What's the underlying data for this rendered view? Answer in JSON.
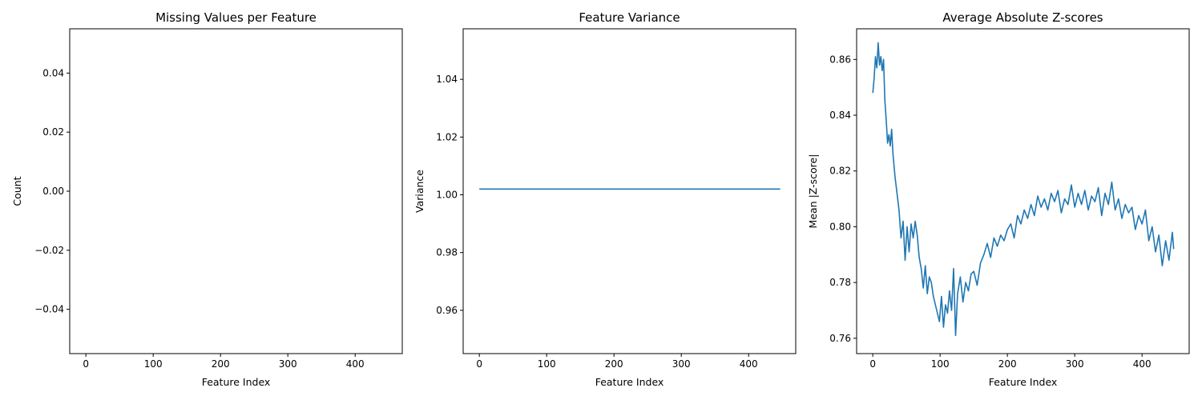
{
  "chart_data": [
    {
      "type": "line",
      "title": "Missing Values per Feature",
      "xlabel": "Feature Index",
      "ylabel": "Count",
      "xlim": [
        -24,
        470
      ],
      "ylim": [
        -0.055,
        0.055
      ],
      "xticks": [
        0,
        100,
        200,
        300,
        400
      ],
      "yticks": [
        -0.04,
        -0.02,
        0.0,
        0.02,
        0.04
      ],
      "ytick_labels": [
        "−0.04",
        "−0.02",
        "0.00",
        "0.02",
        "0.04"
      ],
      "grid": false,
      "series": [],
      "color": "#1f77b4"
    },
    {
      "type": "line",
      "title": "Feature Variance",
      "xlabel": "Feature Index",
      "ylabel": "Variance",
      "xlim": [
        -24,
        470
      ],
      "ylim": [
        0.945,
        1.0575
      ],
      "xticks": [
        0,
        100,
        200,
        300,
        400
      ],
      "yticks": [
        0.96,
        0.98,
        1.0,
        1.02,
        1.04
      ],
      "ytick_labels": [
        "0.96",
        "0.98",
        "1.00",
        "1.02",
        "1.04"
      ],
      "grid": false,
      "series": [
        {
          "x": [
            0,
            447
          ],
          "values": [
            1.002,
            1.002
          ]
        }
      ],
      "color": "#1f77b4"
    },
    {
      "type": "line",
      "title": "Average Absolute Z-scores",
      "xlabel": "Feature Index",
      "ylabel": "Mean |Z-score|",
      "xlim": [
        -24,
        470
      ],
      "ylim": [
        0.7545,
        0.871
      ],
      "xticks": [
        0,
        100,
        200,
        300,
        400
      ],
      "yticks": [
        0.76,
        0.78,
        0.8,
        0.82,
        0.84,
        0.86
      ],
      "ytick_labels": [
        "0.76",
        "0.78",
        "0.80",
        "0.82",
        "0.84",
        "0.86"
      ],
      "grid": false,
      "series": [
        {
          "x": [
            0,
            2,
            4,
            6,
            8,
            10,
            12,
            14,
            16,
            18,
            20,
            22,
            24,
            26,
            28,
            30,
            33,
            36,
            39,
            42,
            45,
            48,
            51,
            54,
            57,
            60,
            63,
            66,
            69,
            72,
            75,
            78,
            81,
            84,
            87,
            90,
            93,
            96,
            99,
            102,
            105,
            108,
            111,
            114,
            117,
            120,
            123,
            126,
            130,
            134,
            138,
            142,
            146,
            150,
            155,
            160,
            165,
            170,
            175,
            180,
            185,
            190,
            195,
            200,
            205,
            210,
            215,
            220,
            225,
            230,
            235,
            240,
            245,
            250,
            255,
            260,
            265,
            270,
            275,
            280,
            285,
            290,
            295,
            300,
            305,
            310,
            315,
            320,
            325,
            330,
            335,
            340,
            345,
            350,
            355,
            360,
            365,
            370,
            375,
            380,
            385,
            390,
            395,
            400,
            405,
            410,
            415,
            420,
            425,
            430,
            435,
            440,
            445,
            447
          ],
          "values": [
            0.848,
            0.853,
            0.861,
            0.857,
            0.866,
            0.858,
            0.861,
            0.856,
            0.86,
            0.845,
            0.838,
            0.83,
            0.833,
            0.829,
            0.835,
            0.826,
            0.818,
            0.812,
            0.806,
            0.796,
            0.802,
            0.788,
            0.8,
            0.791,
            0.801,
            0.796,
            0.802,
            0.797,
            0.789,
            0.785,
            0.778,
            0.786,
            0.776,
            0.782,
            0.78,
            0.775,
            0.772,
            0.769,
            0.766,
            0.775,
            0.764,
            0.772,
            0.769,
            0.777,
            0.77,
            0.785,
            0.761,
            0.776,
            0.782,
            0.773,
            0.78,
            0.777,
            0.783,
            0.784,
            0.779,
            0.787,
            0.79,
            0.794,
            0.789,
            0.796,
            0.793,
            0.797,
            0.795,
            0.799,
            0.801,
            0.796,
            0.804,
            0.801,
            0.806,
            0.803,
            0.808,
            0.804,
            0.811,
            0.807,
            0.81,
            0.806,
            0.812,
            0.809,
            0.813,
            0.805,
            0.81,
            0.808,
            0.815,
            0.807,
            0.812,
            0.808,
            0.813,
            0.806,
            0.811,
            0.809,
            0.814,
            0.804,
            0.812,
            0.808,
            0.816,
            0.806,
            0.81,
            0.803,
            0.808,
            0.805,
            0.807,
            0.799,
            0.804,
            0.801,
            0.806,
            0.795,
            0.8,
            0.791,
            0.797,
            0.786,
            0.795,
            0.788,
            0.798,
            0.792
          ]
        }
      ],
      "color": "#1f77b4"
    }
  ]
}
